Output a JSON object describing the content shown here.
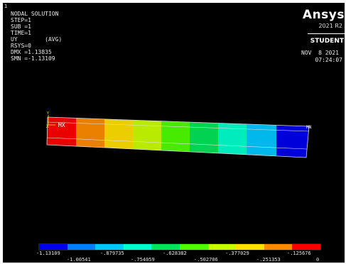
{
  "window": {
    "number": "1"
  },
  "info": {
    "title": "NODAL SOLUTION",
    "lines": [
      "STEP=1",
      "SUB =1",
      "TIME=1",
      "UY        (AVG)",
      "RSYS=0",
      "DMX =1.13835",
      "SMN =-1.13109"
    ]
  },
  "branding": {
    "logo": "Ansys",
    "version": "2021 R2",
    "edition": "STUDENT"
  },
  "timestamp": {
    "date": "NOV  8 2021",
    "time": "07:24:07"
  },
  "markers": {
    "max_label": "MX",
    "min_label": "MN",
    "origin_symbol": "X"
  },
  "legend": {
    "colors": [
      "#0000ee",
      "#007fff",
      "#00c8ff",
      "#00ffcf",
      "#00e55a",
      "#4dff00",
      "#c8ff00",
      "#ffe000",
      "#ff8a00",
      "#ff0000"
    ],
    "values_top": [
      "-1.13109",
      "-.879735",
      "-.628382",
      "-.377029",
      "-.125676"
    ],
    "values_bottom": [
      "-1.00541",
      "-.754059",
      "-.502706",
      "-.251353",
      "0"
    ]
  }
}
